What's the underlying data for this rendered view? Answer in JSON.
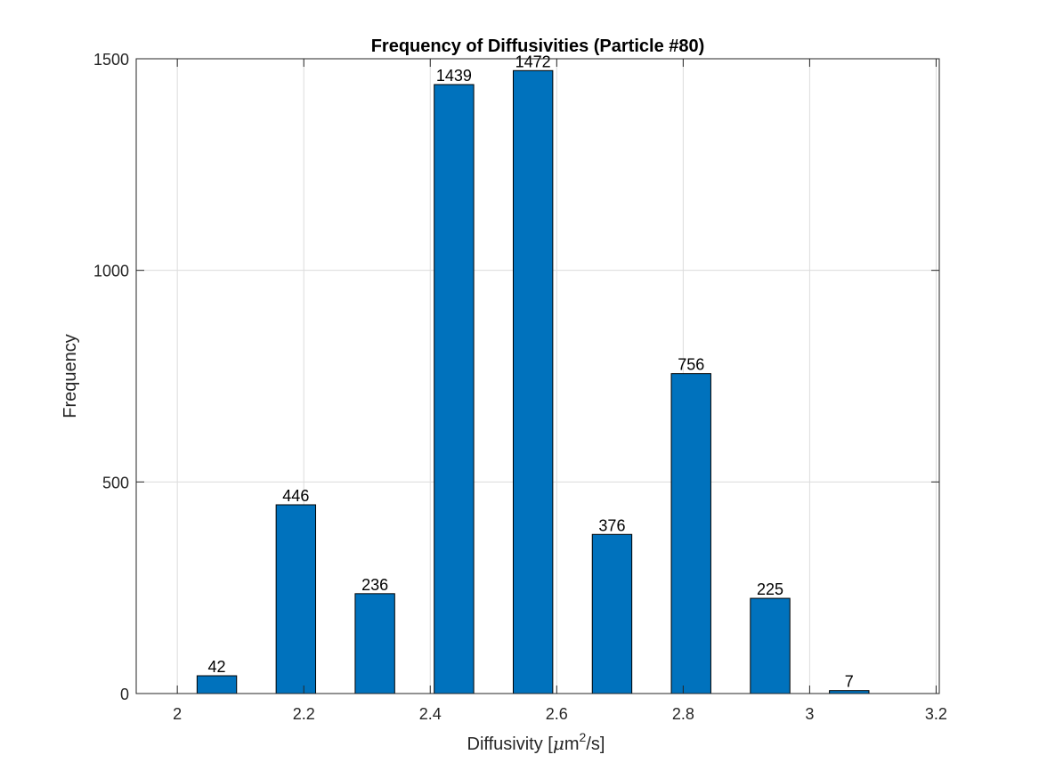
{
  "chart_data": {
    "type": "bar",
    "title": "Frequency of Diffusivities (Particle #80)",
    "xlabel": "Diffusivity [μm²/s]",
    "xlabel_parts": {
      "prefix": "Diffusivity [",
      "mu": "μ",
      "unit": "m",
      "sup": "2",
      "suffix": "/s]"
    },
    "ylabel": "Frequency",
    "x": [
      2.0625,
      2.1875,
      2.3125,
      2.4375,
      2.5625,
      2.6875,
      2.8125,
      2.9375,
      3.0625
    ],
    "values": [
      42,
      446,
      236,
      1439,
      1472,
      376,
      756,
      225,
      7
    ],
    "bar_width": 0.0625,
    "xlim": [
      1.935,
      3.205
    ],
    "ylim": [
      0,
      1500
    ],
    "xticks": [
      2,
      2.2,
      2.4,
      2.6,
      2.8,
      3,
      3.2
    ],
    "xtick_labels": [
      "2",
      "2.2",
      "2.4",
      "2.6",
      "2.8",
      "3",
      "3.2"
    ],
    "yticks": [
      0,
      500,
      1000,
      1500
    ],
    "ytick_labels": [
      "0",
      "500",
      "1000",
      "1500"
    ],
    "data_labels": [
      "42",
      "446",
      "236",
      "1439",
      "1472",
      "376",
      "756",
      "225",
      "7"
    ],
    "grid": true,
    "bar_color": "#0072BD"
  }
}
